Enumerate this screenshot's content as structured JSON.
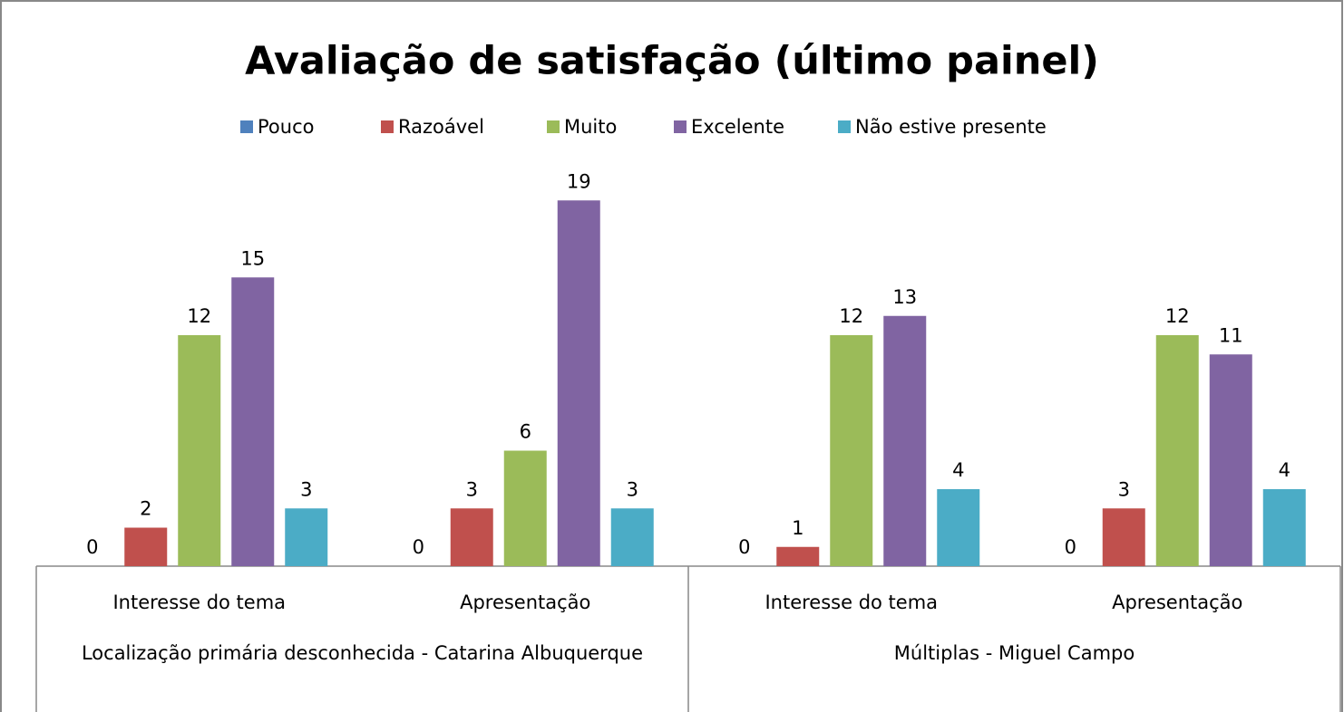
{
  "chart_data": {
    "type": "bar",
    "title": "Avaliação de satisfação (último painel)",
    "groups": [
      {
        "name": "Localização primária desconhecida - Catarina Albuquerque",
        "categories": [
          "Interesse do tema",
          "Apresentação"
        ]
      },
      {
        "name": "Múltiplas - Miguel Campo",
        "categories": [
          "Interesse do tema",
          "Apresentação"
        ]
      }
    ],
    "series": [
      {
        "name": "Pouco",
        "color": "#4f81bd",
        "values": [
          0,
          0,
          0,
          0
        ]
      },
      {
        "name": "Razoável",
        "color": "#c0504d",
        "values": [
          2,
          3,
          1,
          3
        ]
      },
      {
        "name": "Muito",
        "color": "#9bbb59",
        "values": [
          12,
          6,
          12,
          12
        ]
      },
      {
        "name": "Excelente",
        "color": "#8064a2",
        "values": [
          15,
          19,
          13,
          11
        ]
      },
      {
        "name": "Não estive presente",
        "color": "#4bacc6",
        "values": [
          3,
          3,
          4,
          4
        ]
      }
    ],
    "legend": "top"
  }
}
